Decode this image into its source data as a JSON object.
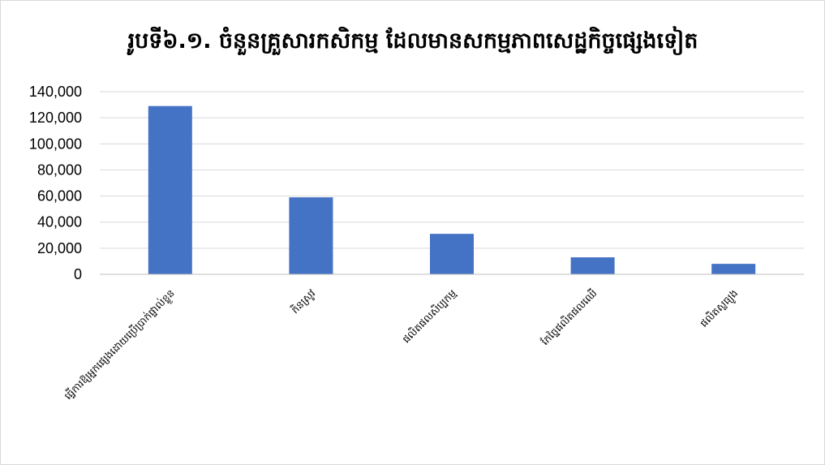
{
  "chart_data": {
    "type": "bar",
    "title": "រូបទី៦.១. ចំនួនគ្រួសារកសិកម្ម ដែលមានសកម្មភាពសេដ្ឋកិច្ចផ្សេងទៀត",
    "xlabel": "",
    "ylabel": "",
    "categories": [
      "ធ្វើការឱ្យអ្នកផ្សេងដោយប្រើប្រាក់ផ្ទាល់ខ្លួន",
      "កិនស្រូវ",
      "ផលិតផលសិប្បកម្ម",
      "កែច្នៃផលិតផលឈើ",
      "ផលិតស្លធ្យូង"
    ],
    "values": [
      129000,
      59000,
      31000,
      13000,
      8000
    ],
    "ylim": [
      0,
      140000
    ],
    "y_ticks": [
      0,
      20000,
      40000,
      60000,
      80000,
      100000,
      120000,
      140000
    ],
    "y_tick_labels": [
      "0",
      "20,000",
      "40,000",
      "60,000",
      "80,000",
      "100,000",
      "120,000",
      "140,000"
    ],
    "grid": true,
    "legend": "none",
    "colors": {
      "bar": "#4472c4",
      "grid": "#d9d9d9",
      "axis": "#bfbfbf"
    }
  }
}
